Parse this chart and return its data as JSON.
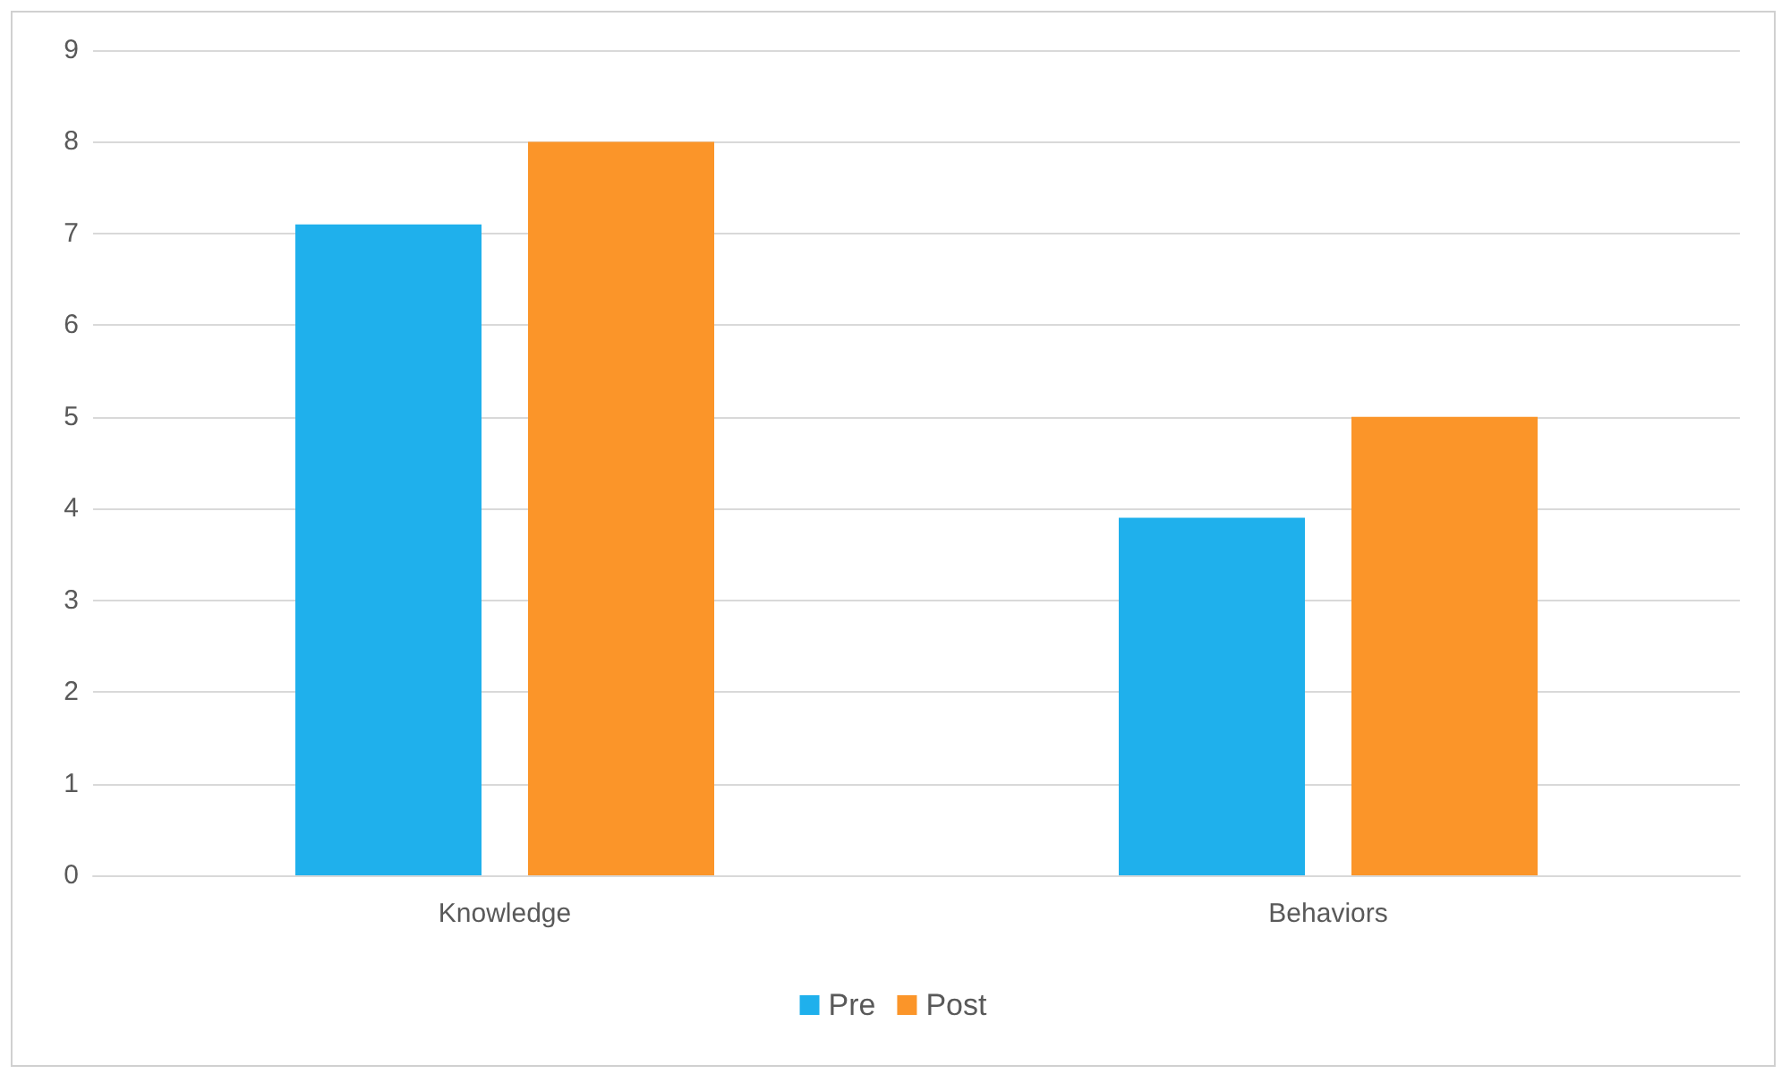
{
  "chart_data": {
    "type": "bar",
    "categories": [
      "Knowledge",
      "Behaviors"
    ],
    "series": [
      {
        "name": "Pre",
        "color": "#1fb0ec",
        "values": [
          7.1,
          3.9
        ]
      },
      {
        "name": "Post",
        "color": "#fb9529",
        "values": [
          8.0,
          5.0
        ]
      }
    ],
    "ylim": [
      0,
      9
    ],
    "yticks": [
      0,
      1,
      2,
      3,
      4,
      5,
      6,
      7,
      8,
      9
    ],
    "grid": "y",
    "legend": "bottom"
  }
}
